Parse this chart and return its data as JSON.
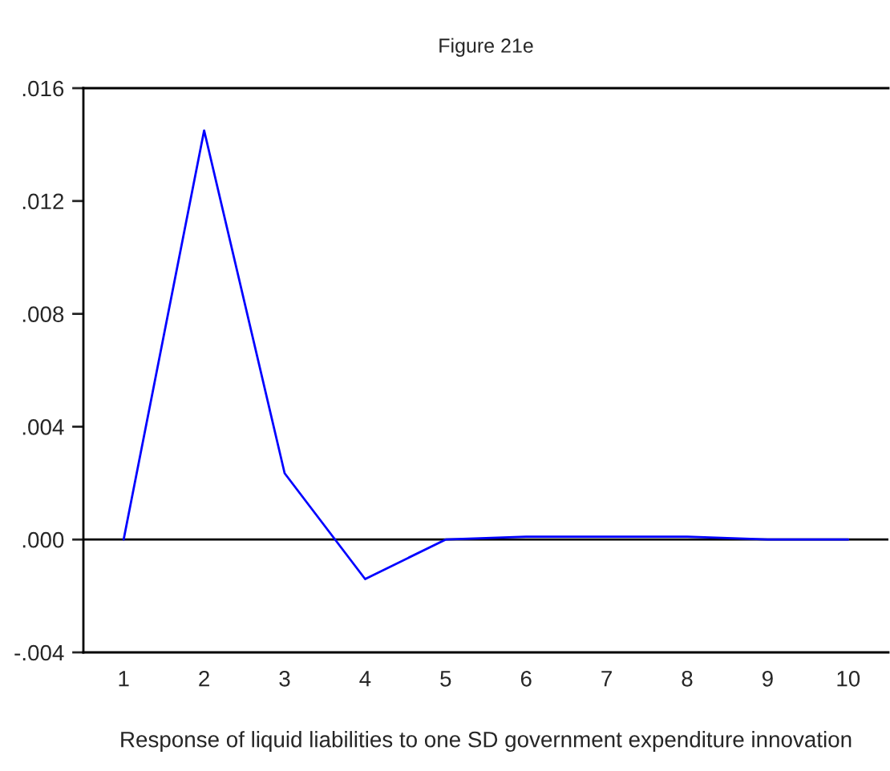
{
  "chart_data": {
    "type": "line",
    "title": "Figure 21e",
    "xlabel": "Response of liquid liabilities to one SD government expenditure innovation",
    "categories": [
      "1",
      "2",
      "3",
      "4",
      "5",
      "6",
      "7",
      "8",
      "9",
      "10"
    ],
    "series": [
      {
        "color": "#0000ff",
        "values": [
          0.0,
          0.0145,
          0.00235,
          -0.0014,
          0.0,
          0.0001,
          0.0001,
          0.0001,
          0.0,
          0.0
        ]
      }
    ],
    "ylim": [
      -0.004,
      0.016
    ],
    "yticks": [
      {
        "value": -0.004,
        "label": "-.004"
      },
      {
        "value": 0.0,
        "label": ".000"
      },
      {
        "value": 0.004,
        "label": ".004"
      },
      {
        "value": 0.008,
        "label": ".008"
      },
      {
        "value": 0.012,
        "label": ".012"
      },
      {
        "value": 0.016,
        "label": ".016"
      }
    ],
    "ref_lines": [
      {
        "axis": "y",
        "value": 0.0,
        "color": "#000000"
      }
    ],
    "grid": false,
    "legend": false,
    "marker": "none",
    "line_style": "solid"
  }
}
